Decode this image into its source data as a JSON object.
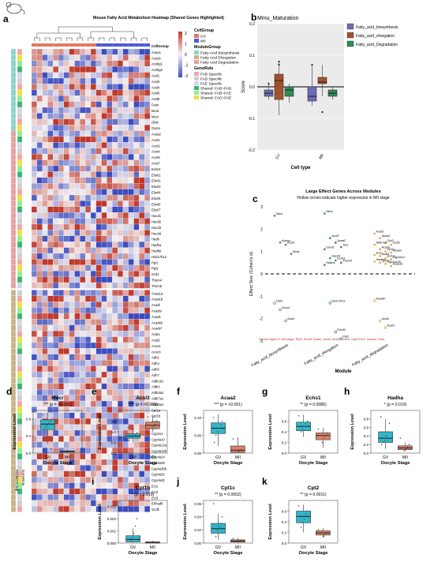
{
  "colors": {
    "gv": "#31b5c8",
    "mii": "#d9826a",
    "fab": "#6b6bb5",
    "fae": "#a0522d",
    "fad": "#2e8b57",
    "heat_low": "#3b4cc0",
    "heat_mid": "#f4f0f0",
    "heat_high": "#c0392b",
    "cg_gv": "#e07a5f",
    "cg_mii": "#4f5bd5",
    "mg_fab": "#8fd3c8",
    "mg_fae": "#c9b48a",
    "mg_fad": "#e8a0a0",
    "role_fab": "#f4a6a6",
    "role_fad": "#cfcfcf",
    "role_fae": "#d6d6e8",
    "role_fab_fad": "#3cb371",
    "role_fab_fae": "#90ee90",
    "role_fad_fae": "#f0e040"
  },
  "panel_a": {
    "letter": "a",
    "title": "Mouse Fatty Acid Metabolism Heatmap (Shared Genes Highlighted)",
    "genes_top": [
      "Acaca",
      "Acacb",
      "Acsbg1",
      "Acsbg2",
      "Acsl1",
      "Acsl3",
      "Acsl4",
      "Acsl5",
      "Acsl6",
      "Fasn",
      "Mcat",
      "Mecr",
      "Olah",
      "Oxsm",
      "Acaa2",
      "Acot1",
      "Acot2",
      "Acot4",
      "Acot6",
      "Acot7",
      "Echs1",
      "Elovl1",
      "Elovl2",
      "Elovl3",
      "Elovl4",
      "Elovl5",
      "Elovl6",
      "Elovl7",
      "Hacd1",
      "Hacd2",
      "Hacd3",
      "Hacd4",
      "Hadh",
      "Hadha",
      "Hadhb",
      "Hsd17b12",
      "Ppt1",
      "Ppt2",
      "Scd1",
      "Them4",
      "Them5"
    ],
    "genes_bottom": [
      "Acaa1a",
      "Acaa1b",
      "Acadl",
      "Acadm",
      "Acads",
      "Acadsb",
      "Acadvl",
      "Acat1",
      "Acat2",
      "Acox1",
      "Acox3",
      "Adh1",
      "Adh4",
      "Adh5",
      "Adh7",
      "Aldh1b1",
      "Aldh2",
      "Aldh3a2",
      "Aldh7a1",
      "Aldh9a1",
      "Cpt1a",
      "Cpt1b",
      "Cpt1c",
      "Cpt2",
      "Cyp2u1",
      "Cyp4a10",
      "Cyp4a12a",
      "Cyp4a12b",
      "Cyp4a14",
      "Cyp4a29",
      "Cyp4a30b",
      "Cyp4a31",
      "Cyp4a32",
      "Eci1",
      "Eci2",
      "Eci3",
      "Ehhadh",
      "Gcdh"
    ],
    "legend_scale": {
      "title": "",
      "ticks": [
        "2",
        "1",
        "0",
        "-1",
        "-2"
      ]
    },
    "legend_cellgroup": {
      "title": "CellGroup",
      "items": [
        "GV",
        "MII"
      ]
    },
    "legend_modulegroup": {
      "title": "ModuleGroup",
      "items": [
        "Fatty Acid Biosynthesis",
        "Fatty Acid Elongation",
        "Fatty Acid Degradation"
      ]
    },
    "legend_generole": {
      "title": "GeneRole",
      "items": [
        "FAB Specific",
        "FAD Specific",
        "FAE Specific",
        "Shared: FAB~FAD",
        "Shared: FAB~FAE",
        "Shared: FAD~FAE"
      ]
    },
    "label_cellgroup": "CellGroup",
    "label_modulegroup": "ModuleGroup",
    "label_generole": "GeneRole"
  },
  "chart_data": [
    {
      "id": "b",
      "type": "box",
      "letter": "b",
      "title": "Mmu_Maturation",
      "xlabel": "Cell type",
      "ylabel": "Score",
      "categories": [
        "GV",
        "MII"
      ],
      "ylim": [
        -0.2,
        0.2
      ],
      "yticks": [
        "0.2",
        "0.1",
        "0.0",
        "-0.1",
        "-0.2"
      ],
      "legend": [
        "Fatty_acid_biosynthesis",
        "Fatty_acid_elongation",
        "Fatty_acid_Degradation"
      ],
      "series": [
        {
          "name": "Fatty_acid_biosynthesis",
          "boxes": [
            {
              "min": -0.04,
              "q1": -0.03,
              "median": -0.02,
              "q3": -0.01,
              "max": 0.01,
              "outliers": [
                0.01
              ]
            },
            {
              "min": -0.06,
              "q1": -0.045,
              "median": -0.03,
              "q3": 0.0,
              "max": 0.07,
              "outliers": [
                0.07
              ]
            }
          ]
        },
        {
          "name": "Fatty_acid_elongation",
          "boxes": [
            {
              "min": -0.09,
              "q1": -0.04,
              "median": 0.02,
              "q3": 0.04,
              "max": 0.08,
              "outliers": [
                0.07,
                0.08
              ]
            },
            {
              "min": -0.03,
              "q1": 0.01,
              "median": 0.015,
              "q3": 0.03,
              "max": 0.07,
              "outliers": [
                -0.08
              ]
            }
          ]
        },
        {
          "name": "Fatty_acid_Degradation",
          "boxes": [
            {
              "min": -0.05,
              "q1": -0.03,
              "median": -0.01,
              "q3": 0.0,
              "max": 0.01,
              "outliers": []
            },
            {
              "min": -0.04,
              "q1": -0.03,
              "median": -0.02,
              "q3": -0.01,
              "max": 0.0,
              "outliers": []
            }
          ]
        }
      ]
    },
    {
      "id": "c",
      "type": "scatter",
      "letter": "c",
      "title": "Large Effect Genes Across Modules",
      "subtitle": "Hollow circles indicate higher expression in MII stage",
      "xlabel": "Module",
      "ylabel": "Effect Size (Cohen's d)",
      "categories": [
        "Fatty_acid_biosynthesis",
        "Fatty_acid_elongation",
        "Fatty_acid_degradation"
      ],
      "ylim": [
        -3,
        3
      ],
      "yticks": [
        "3",
        "2",
        "1",
        "0",
        "-1",
        "-2",
        "-3"
      ],
      "footnote": "Genes higher in MII stage: Ppt2, Elovl5, Acat1, Acsl3, Acat3, Oxsm, Hsd17b12, Acadm, Olah",
      "points": [
        {
          "gene": "Mecr",
          "module": 0,
          "d": 2.6,
          "hollow": false
        },
        {
          "gene": "Acaca",
          "module": 0,
          "d": 1.4,
          "hollow": false
        },
        {
          "gene": "Acsl3",
          "module": 0,
          "d": 1.3,
          "hollow": false
        },
        {
          "gene": "Mcat",
          "module": 0,
          "d": 0.9,
          "hollow": false
        },
        {
          "gene": "Olah",
          "module": 0,
          "d": -1.3,
          "hollow": true
        },
        {
          "gene": "Oxsm",
          "module": 0,
          "d": -1.6,
          "hollow": true
        },
        {
          "gene": "Acsl3",
          "module": 0,
          "d": -2.1,
          "hollow": true
        },
        {
          "gene": "Mecr",
          "module": 1,
          "d": 2.7,
          "hollow": false
        },
        {
          "gene": "Acot7",
          "module": 1,
          "d": 1.6,
          "hollow": false
        },
        {
          "gene": "Acaa2",
          "module": 1,
          "d": 1.4,
          "hollow": false
        },
        {
          "gene": "Tecr",
          "module": 1,
          "d": 1.2,
          "hollow": false
        },
        {
          "gene": "Elovl1",
          "module": 1,
          "d": 1.1,
          "hollow": false
        },
        {
          "gene": "Hacd3",
          "module": 1,
          "d": 0.7,
          "hollow": false
        },
        {
          "gene": "Echs1",
          "module": 1,
          "d": 0.6,
          "hollow": false
        },
        {
          "gene": "Them4",
          "module": 1,
          "d": 0.5,
          "hollow": false
        },
        {
          "gene": "Hadha",
          "module": 1,
          "d": 0.4,
          "hollow": false
        },
        {
          "gene": "Hsd17b12",
          "module": 1,
          "d": -1.3,
          "hollow": true
        },
        {
          "gene": "Elovl5",
          "module": 1,
          "d": -2.6,
          "hollow": true
        },
        {
          "gene": "Ppt2",
          "module": 1,
          "d": -2.9,
          "hollow": true
        },
        {
          "gene": "Acat3",
          "module": 2,
          "d": 1.8,
          "hollow": false
        },
        {
          "gene": "Acaa2",
          "module": 2,
          "d": 1.6,
          "hollow": false
        },
        {
          "gene": "Cpt2",
          "module": 2,
          "d": 1.4,
          "hollow": false
        },
        {
          "gene": "Gcdh",
          "module": 2,
          "d": 1.3,
          "hollow": false
        },
        {
          "gene": "Aldh7a1",
          "module": 2,
          "d": 1.3,
          "hollow": false
        },
        {
          "gene": "Acads",
          "module": 2,
          "d": 1.1,
          "hollow": false
        },
        {
          "gene": "Cpt1c",
          "module": 2,
          "d": 1.0,
          "hollow": false
        },
        {
          "gene": "Acadvl",
          "module": 2,
          "d": 0.95,
          "hollow": false
        },
        {
          "gene": "Eci1",
          "module": 2,
          "d": 0.85,
          "hollow": false
        },
        {
          "gene": "Acat2",
          "module": 2,
          "d": 0.8,
          "hollow": false
        },
        {
          "gene": "Echs1",
          "module": 2,
          "d": 0.7,
          "hollow": false
        },
        {
          "gene": "Cyp4a14",
          "module": 2,
          "d": 0.65,
          "hollow": false
        },
        {
          "gene": "Hadha",
          "module": 2,
          "d": 0.55,
          "hollow": false
        },
        {
          "gene": "Cpt1b",
          "module": 2,
          "d": 0.5,
          "hollow": false
        },
        {
          "gene": "Cyp4a12b",
          "module": 2,
          "d": 0.45,
          "hollow": false
        },
        {
          "gene": "Acaa1b",
          "module": 2,
          "d": 0.35,
          "hollow": false
        },
        {
          "gene": "Acadm",
          "module": 2,
          "d": -1.2,
          "hollow": true
        },
        {
          "gene": "Acsl3",
          "module": 2,
          "d": -2.1,
          "hollow": true
        },
        {
          "gene": "Acat1",
          "module": 2,
          "d": -2.4,
          "hollow": true
        }
      ]
    },
    {
      "id": "d",
      "type": "box",
      "letter": "d",
      "title": "Mecr",
      "stat": "*** (p = <0.001)",
      "xlabel": "Oocyte Stage",
      "ylabel": "Expression Level",
      "categories": [
        "GV",
        "MII"
      ],
      "ylim": [
        0,
        1.0
      ],
      "yticks": [
        "0.0",
        "0.4",
        "0.8"
      ],
      "boxes": [
        {
          "min": 0.2,
          "q1": 0.55,
          "median": 0.68,
          "q3": 0.78,
          "max": 0.95,
          "jitter": [
            0.9,
            0.8,
            0.75,
            0.7,
            0.65,
            0.6,
            0.5,
            0.35,
            0.1
          ]
        },
        {
          "min": 0.0,
          "q1": 0.02,
          "median": 0.04,
          "q3": 0.05,
          "max": 0.07,
          "jitter": [
            0.05,
            0.03,
            0.02
          ]
        }
      ]
    },
    {
      "id": "e",
      "type": "box",
      "letter": "e",
      "title": "Acsl3",
      "stat": "**** (p = <0.001)",
      "xlabel": "Oocyte Stage",
      "ylabel": "Expression Level",
      "categories": [
        "GV",
        "MII"
      ],
      "ylim": [
        0,
        2.0
      ],
      "yticks": [
        "0.0",
        "0.5",
        "1.0",
        "1.5"
      ],
      "boxes": [
        {
          "min": 0.5,
          "q1": 0.7,
          "median": 0.8,
          "q3": 0.9,
          "max": 1.2,
          "jitter": [
            1.2,
            0.95,
            0.85,
            0.8,
            0.75,
            0.7,
            0.6
          ]
        },
        {
          "min": 1.0,
          "q1": 1.15,
          "median": 1.3,
          "q3": 1.45,
          "max": 1.75,
          "jitter": [
            1.7,
            1.5,
            1.35,
            1.25,
            1.15
          ]
        }
      ]
    },
    {
      "id": "f",
      "type": "box",
      "letter": "f",
      "title": "Acaa2",
      "stat": "*** (p = <0.001)",
      "xlabel": "Oocyte Stage",
      "ylabel": "Expression Level",
      "categories": [
        "GV",
        "MII"
      ],
      "ylim": [
        0,
        0.12
      ],
      "yticks": [
        "0.00",
        "0.05",
        "0.10"
      ],
      "boxes": [
        {
          "min": 0.02,
          "q1": 0.055,
          "median": 0.07,
          "q3": 0.085,
          "max": 0.11,
          "jitter": [
            0.1,
            0.09,
            0.08,
            0.07,
            0.06,
            0.05,
            0.03
          ]
        },
        {
          "min": 0.0,
          "q1": 0.002,
          "median": 0.008,
          "q3": 0.02,
          "max": 0.045,
          "jitter": [
            0.04,
            0.02,
            0.01,
            0.005
          ]
        }
      ]
    },
    {
      "id": "g",
      "type": "box",
      "letter": "g",
      "title": "Echs1",
      "stat": "** (p = 0.0086)",
      "xlabel": "Oocyte Stage",
      "ylabel": "Expression Level",
      "categories": [
        "GV",
        "MII"
      ],
      "ylim": [
        0,
        0.8
      ],
      "yticks": [
        "0.0",
        "0.2",
        "0.4",
        "0.6"
      ],
      "boxes": [
        {
          "min": 0.3,
          "q1": 0.42,
          "median": 0.5,
          "q3": 0.58,
          "max": 0.72,
          "jitter": [
            0.7,
            0.6,
            0.55,
            0.5,
            0.45,
            0.4
          ]
        },
        {
          "min": 0.1,
          "q1": 0.25,
          "median": 0.33,
          "q3": 0.38,
          "max": 0.48,
          "jitter": [
            0.45,
            0.38,
            0.32,
            0.28,
            0.2
          ]
        }
      ]
    },
    {
      "id": "h",
      "type": "box",
      "letter": "h",
      "title": "Hadha",
      "stat": "* (p = 0.019)",
      "xlabel": "Oocyte Stage",
      "ylabel": "Expression Level",
      "categories": [
        "GV",
        "MII"
      ],
      "ylim": [
        0,
        1.0
      ],
      "yticks": [
        "0.0",
        "0.2",
        "0.4",
        "0.6",
        "0.8"
      ],
      "boxes": [
        {
          "min": 0.1,
          "q1": 0.25,
          "median": 0.35,
          "q3": 0.5,
          "max": 0.8,
          "jitter": [
            0.85,
            0.7,
            0.5,
            0.4,
            0.3,
            0.25,
            0.2
          ]
        },
        {
          "min": 0.05,
          "q1": 0.08,
          "median": 0.12,
          "q3": 0.17,
          "max": 0.25,
          "jitter": [
            0.35,
            0.2,
            0.15,
            0.1,
            0.06
          ]
        }
      ]
    },
    {
      "id": "i",
      "type": "box",
      "letter": "i",
      "title": "Cpt1b",
      "stat": "* (p = 0.019)",
      "xlabel": "Oocyte Stage",
      "ylabel": "Expression Level",
      "categories": [
        "GV",
        "MII"
      ],
      "ylim": [
        0,
        0.0035
      ],
      "yticks": [
        "0.000",
        "0.001",
        "0.002",
        "0.003"
      ],
      "boxes": [
        {
          "min": 0.0,
          "q1": 0.0001,
          "median": 0.0003,
          "q3": 0.0006,
          "max": 0.0012,
          "jitter": [
            0.003,
            0.002,
            0.0014,
            0.0008,
            0.0004,
            0.0002
          ]
        },
        {
          "min": 0.0,
          "q1": 0.0,
          "median": 5e-05,
          "q3": 0.0001,
          "max": 0.0002,
          "jitter": [
            0.0001,
            0.0
          ]
        }
      ]
    },
    {
      "id": "j",
      "type": "box",
      "letter": "j",
      "title": "Cpt1c",
      "stat": "** (p = 0.0052)",
      "xlabel": "Oocyte Stage",
      "ylabel": "Expression Level",
      "categories": [
        "GV",
        "MII"
      ],
      "ylim": [
        0,
        0.065
      ],
      "yticks": [
        "0.00",
        "0.02",
        "0.04",
        "0.06"
      ],
      "boxes": [
        {
          "min": 0.005,
          "q1": 0.015,
          "median": 0.022,
          "q3": 0.03,
          "max": 0.045,
          "jitter": [
            0.06,
            0.04,
            0.03,
            0.025,
            0.02,
            0.01
          ]
        },
        {
          "min": 0.0,
          "q1": 0.0015,
          "median": 0.003,
          "q3": 0.005,
          "max": 0.008,
          "jitter": [
            0.007,
            0.004,
            0.002
          ]
        }
      ]
    },
    {
      "id": "k",
      "type": "box",
      "letter": "k",
      "title": "Cpt2",
      "stat": "** (p = 0.0011)",
      "xlabel": "Oocyte Stage",
      "ylabel": "Expression Level",
      "categories": [
        "GV",
        "MII"
      ],
      "ylim": [
        0,
        0.8
      ],
      "yticks": [
        "0.0",
        "0.2",
        "0.4",
        "0.6"
      ],
      "boxes": [
        {
          "min": 0.2,
          "q1": 0.38,
          "median": 0.5,
          "q3": 0.6,
          "max": 0.72,
          "jitter": [
            0.7,
            0.6,
            0.55,
            0.45,
            0.4,
            0.3
          ]
        },
        {
          "min": 0.1,
          "q1": 0.15,
          "median": 0.19,
          "q3": 0.23,
          "max": 0.28,
          "jitter": [
            0.25,
            0.2,
            0.17,
            0.13
          ]
        }
      ]
    }
  ]
}
